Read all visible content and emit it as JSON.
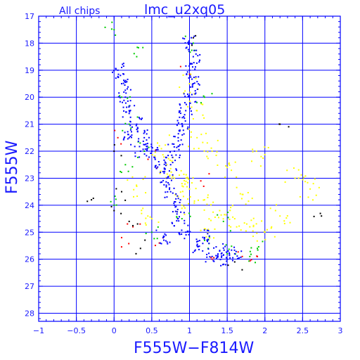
{
  "header": {
    "subtitle": "All chips",
    "title": "lmc_u2xq05"
  },
  "colors": {
    "axis": "#0000ff",
    "grid": "#0000ff",
    "text": "#1a1aff",
    "dots": [
      "#0000ff",
      "#ffff00",
      "#00cc00",
      "#ff0000",
      "#000000"
    ]
  },
  "chart_data": {
    "type": "scatter",
    "title": "lmc_u2xq05",
    "subtitle": "All chips",
    "xlabel": "F555W−F814W",
    "ylabel": "F555W",
    "xlim": [
      -1,
      3
    ],
    "ylim": [
      28.3,
      17
    ],
    "y_inverted": true,
    "grid": true,
    "x_ticks": [
      -1,
      -0.5,
      0,
      0.5,
      1,
      1.5,
      2,
      2.5,
      3
    ],
    "x_tick_labels": [
      "−1",
      "−0.5",
      "0",
      "0.5",
      "1",
      "1.5",
      "2",
      "2.5",
      "3"
    ],
    "y_ticks": [
      17,
      18,
      19,
      20,
      21,
      22,
      23,
      24,
      25,
      26,
      27,
      28
    ],
    "y_tick_labels": [
      "17",
      "18",
      "19",
      "20",
      "21",
      "22",
      "23",
      "24",
      "25",
      "26",
      "27",
      "28"
    ],
    "series": [
      {
        "color": "blue",
        "points": [
          [
            0.05,
            19.0
          ],
          [
            0.1,
            19.5
          ],
          [
            0.15,
            20.0
          ],
          [
            0.2,
            20.5
          ],
          [
            0.3,
            21.0
          ],
          [
            0.4,
            21.5
          ],
          [
            0.5,
            22.0
          ],
          [
            0.6,
            22.5
          ],
          [
            0.7,
            23.0
          ],
          [
            0.75,
            23.5
          ],
          [
            0.8,
            24.0
          ],
          [
            0.85,
            24.5
          ],
          [
            0.95,
            25.0
          ],
          [
            1.1,
            25.5
          ],
          [
            1.3,
            25.9
          ],
          [
            1.5,
            26.0
          ],
          [
            1.0,
            19.0
          ],
          [
            1.05,
            19.5
          ],
          [
            1.0,
            20.0
          ],
          [
            0.95,
            20.5
          ],
          [
            0.9,
            21.0
          ],
          [
            0.85,
            21.5
          ],
          [
            0.8,
            22.0
          ],
          [
            0.75,
            22.5
          ],
          [
            1.0,
            18.0
          ],
          [
            1.05,
            18.5
          ],
          [
            0.2,
            21.5
          ],
          [
            0.35,
            22.0
          ],
          [
            1.2,
            25.2
          ],
          [
            1.4,
            25.7
          ],
          [
            1.6,
            25.8
          ],
          [
            0.65,
            25.2
          ]
        ]
      },
      {
        "color": "yellow",
        "points": [
          [
            0.7,
            22.5
          ],
          [
            0.8,
            23.0
          ],
          [
            0.9,
            23.2
          ],
          [
            1.0,
            23.4
          ],
          [
            1.2,
            23.8
          ],
          [
            1.4,
            24.2
          ],
          [
            1.6,
            24.5
          ],
          [
            1.8,
            24.8
          ],
          [
            2.0,
            25.0
          ],
          [
            1.1,
            21.5
          ],
          [
            1.3,
            22.0
          ],
          [
            1.5,
            22.6
          ],
          [
            0.6,
            21.8
          ],
          [
            1.0,
            19.5
          ],
          [
            1.1,
            20.5
          ],
          [
            0.9,
            24.0
          ],
          [
            1.7,
            23.6
          ],
          [
            2.2,
            24.4
          ],
          [
            2.4,
            23.0
          ],
          [
            2.6,
            23.4
          ],
          [
            1.95,
            22.2
          ],
          [
            0.5,
            24.5
          ],
          [
            0.3,
            23.3
          ],
          [
            1.25,
            24.9
          ]
        ]
      },
      {
        "color": "green",
        "points": [
          [
            0.1,
            20.0
          ],
          [
            0.2,
            21.0
          ],
          [
            0.4,
            22.0
          ],
          [
            0.9,
            24.5
          ],
          [
            1.2,
            25.3
          ],
          [
            1.5,
            25.8
          ],
          [
            1.8,
            25.9
          ],
          [
            0.0,
            17.5
          ],
          [
            0.3,
            18.5
          ],
          [
            1.05,
            18.0
          ],
          [
            1.2,
            20.0
          ],
          [
            0.0,
            24.0
          ],
          [
            0.5,
            25.0
          ],
          [
            1.9,
            25.6
          ],
          [
            0.15,
            22.5
          ],
          [
            1.45,
            24.6
          ]
        ]
      },
      {
        "color": "red",
        "points": [
          [
            0.25,
            24.8
          ],
          [
            0.6,
            25.4
          ],
          [
            1.3,
            26.0
          ],
          [
            1.7,
            25.9
          ],
          [
            0.05,
            21.5
          ],
          [
            1.0,
            19.0
          ],
          [
            0.1,
            25.2
          ],
          [
            1.9,
            25.9
          ],
          [
            0.45,
            22.3
          ],
          [
            1.15,
            23.1
          ]
        ]
      },
      {
        "color": "black",
        "points": [
          [
            0.0,
            24.2
          ],
          [
            0.2,
            24.6
          ],
          [
            0.1,
            23.5
          ],
          [
            1.05,
            17.8
          ],
          [
            0.0,
            22.0
          ],
          [
            2.2,
            21.0
          ],
          [
            1.6,
            26.1
          ],
          [
            0.35,
            25.6
          ],
          [
            -0.3,
            23.8
          ],
          [
            2.75,
            24.4
          ]
        ]
      }
    ]
  }
}
